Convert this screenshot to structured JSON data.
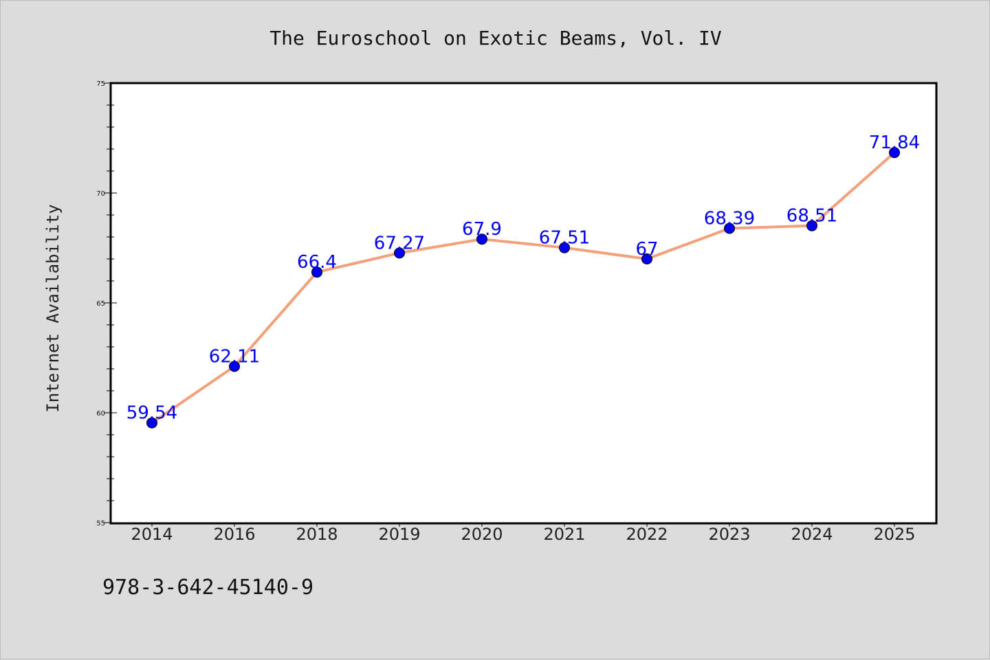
{
  "chart_data": {
    "type": "line",
    "title": "The Euroschool on Exotic Beams, Vol. IV",
    "xlabel": "",
    "ylabel": "Internet Availability",
    "categories": [
      "2014",
      "2016",
      "2018",
      "2019",
      "2020",
      "2021",
      "2022",
      "2023",
      "2024",
      "2025"
    ],
    "series": [
      {
        "values": [
          59.54,
          62.11,
          66.4,
          67.27,
          67.9,
          67.51,
          67,
          68.39,
          68.51,
          71.84
        ],
        "data_labels": [
          "59.54",
          "62.11",
          "66.4",
          "67.27",
          "67.9",
          "67.51",
          "67",
          "68.39",
          "68.51",
          "71.84"
        ]
      }
    ],
    "ylim": [
      55,
      75
    ],
    "yticks": [
      "55",
      "60",
      "65",
      "70",
      "75"
    ],
    "grid": false,
    "legend": "none"
  },
  "footer": {
    "isbn": "978-3-642-45140-9"
  },
  "colors": {
    "background": "#dcdcdc",
    "plot_area": "#ffffff",
    "line": "#f4a07a",
    "marker": "#0000ee",
    "data_label": "#0000ee"
  }
}
